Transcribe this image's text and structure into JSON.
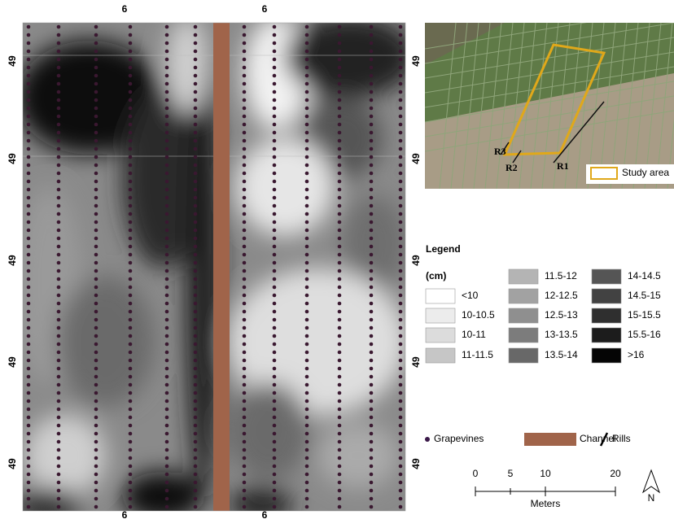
{
  "map": {
    "top_labels": [
      "6",
      "6"
    ],
    "bottom_labels": [
      "6",
      "6"
    ],
    "left_labels": [
      "49",
      "49",
      "49",
      "49",
      "49"
    ],
    "right_labels": [
      "49",
      "49",
      "49",
      "49",
      "49"
    ]
  },
  "inset": {
    "labels": [
      "R3",
      "R2",
      "R1"
    ],
    "legend": "Study area"
  },
  "legend": {
    "title": "Legend",
    "unit": "(cm)",
    "classes": [
      {
        "label": "<10",
        "color": "#ffffff"
      },
      {
        "label": "10-10.5",
        "color": "#ececec"
      },
      {
        "label": "10-11",
        "color": "#dcdcdc"
      },
      {
        "label": "11-11.5",
        "color": "#c6c6c6"
      },
      {
        "label": "11.5-12",
        "color": "#b4b4b4"
      },
      {
        "label": "12-12.5",
        "color": "#a2a2a2"
      },
      {
        "label": "12.5-13",
        "color": "#8f8f8f"
      },
      {
        "label": "13-13.5",
        "color": "#7c7c7c"
      },
      {
        "label": "13.5-14",
        "color": "#686868"
      },
      {
        "label": "14-14.5",
        "color": "#555555"
      },
      {
        "label": "14.5-15",
        "color": "#424242"
      },
      {
        "label": "15-15.5",
        "color": "#2f2f2f"
      },
      {
        "label": "15.5-16",
        "color": "#1c1c1c"
      },
      {
        "label": ">16",
        "color": "#050505"
      }
    ],
    "symbols": [
      "Grapevines",
      "Channel",
      "Rills"
    ]
  },
  "scale_bar": {
    "ticks": [
      "0",
      "5",
      "10",
      "20"
    ],
    "unit": "Meters"
  },
  "north": "N"
}
